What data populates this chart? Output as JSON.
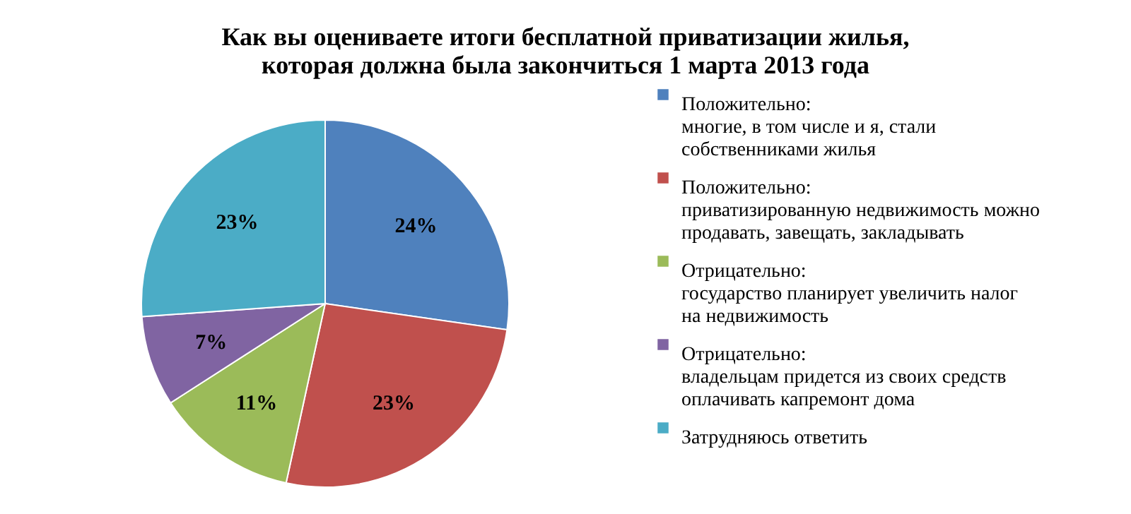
{
  "chart_data": {
    "type": "pie",
    "title": "Как вы оцениваете итоги бесплатной приватизации жилья, которая  должна была закончиться 1 марта 2013 года",
    "categories": [
      "Положительно: многие, в том числе и я, стали собственниками жилья",
      "Положительно: приватизированную недвижимость можно продавать, завещать, закладывать",
      "Отрицательно: государство планирует увеличить налог на недвижимость",
      "Отрицательно: владельцам придется из своих средств оплачивать капремонт дома",
      "Затрудняюсь ответить"
    ],
    "values": [
      24,
      23,
      11,
      7,
      23
    ],
    "value_labels": [
      "24%",
      "23%",
      "11%",
      "7%",
      "23%"
    ],
    "colors": [
      "#4f81bd",
      "#c0504d",
      "#9bbb59",
      "#8064a2",
      "#4bacc6"
    ],
    "legend": "right"
  }
}
